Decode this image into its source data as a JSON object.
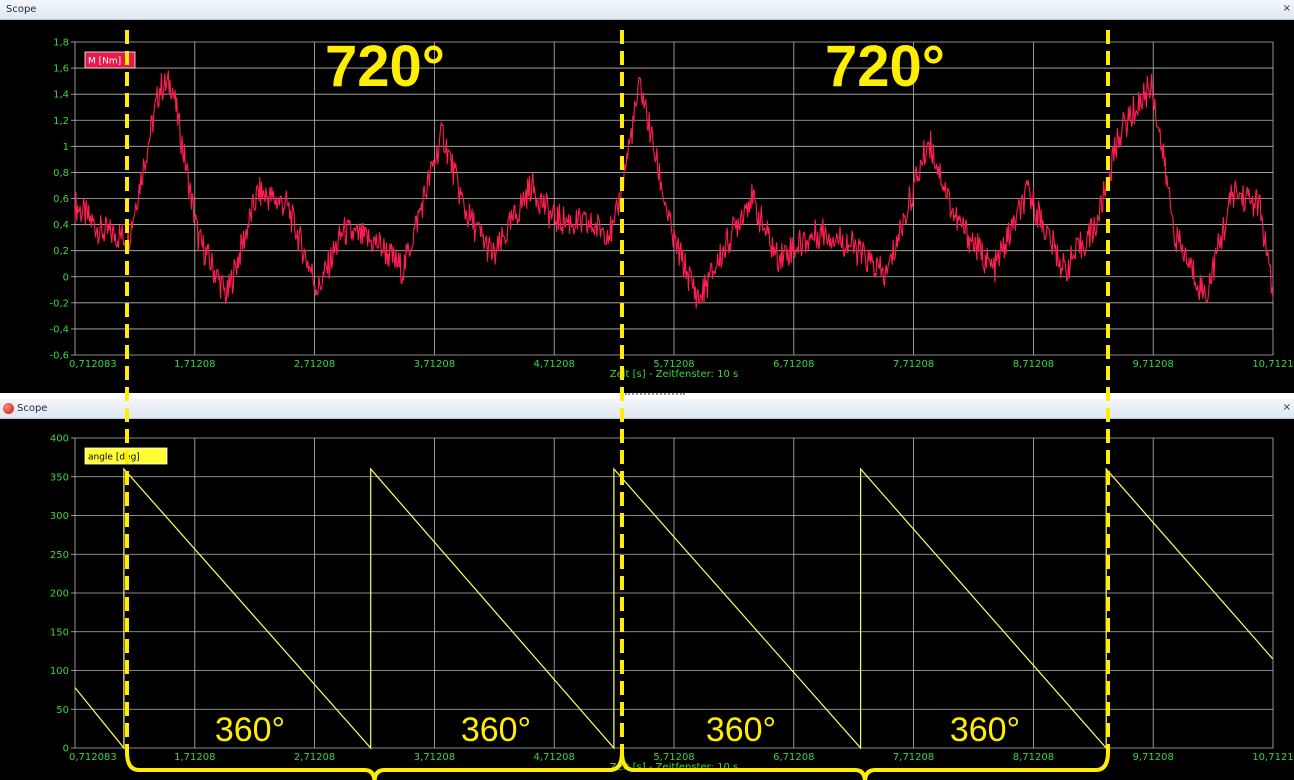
{
  "window1": {
    "title": "Scope",
    "close": "×"
  },
  "window2": {
    "title": "Scope",
    "close": "×"
  },
  "colors": {
    "plot_bg": "#000000",
    "grid": "#b8b8b8",
    "tick_text": "#3cd43c",
    "torque": "#ff1e50",
    "angle": "#ffff66",
    "annotation": "#ffee00",
    "titlebar_bg": "#dfe7f1"
  },
  "chart_data": [
    {
      "type": "line",
      "title": "",
      "xlabel": "Zeit [s] - Zeitfenster: 10 s",
      "ylabel": "",
      "xlim": [
        0.712083,
        10.71208
      ],
      "ylim": [
        -0.6,
        1.8
      ],
      "x_tick_labels": [
        "0,712083",
        "1,71208",
        "2,71208",
        "3,71208",
        "4,71208",
        "5,71208",
        "6,71208",
        "7,71208",
        "8,71208",
        "9,71208",
        "10,7121"
      ],
      "y_ticks": [
        -0.6,
        -0.4,
        -0.2,
        0,
        0.2,
        0.4,
        0.6,
        0.8,
        1,
        1.2,
        1.4,
        1.6,
        1.8
      ],
      "y_tick_labels": [
        "-0,6",
        "-0,4",
        "-0,2",
        "0",
        "0,2",
        "0,4",
        "0,6",
        "0,8",
        "1",
        "1,2",
        "1,4",
        "1,6",
        "1,8"
      ],
      "series": [
        {
          "name": "M [Nm]",
          "color": "#ff1e50",
          "noise_band": 0.12,
          "x": [
            0.712,
            0.93,
            1.16,
            1.42,
            1.52,
            1.74,
            1.98,
            2.24,
            2.48,
            2.74,
            2.95,
            3.25,
            3.45,
            3.78,
            3.97,
            4.21,
            4.52,
            4.7,
            5.21,
            5.43,
            5.7,
            5.92,
            6.35,
            6.57,
            6.95,
            7.18,
            7.48,
            7.84,
            8.06,
            8.38,
            8.67,
            8.97,
            9.24,
            9.43,
            9.7,
            9.9,
            10.15,
            10.38,
            10.6,
            10.71
          ],
          "y": [
            0.55,
            0.35,
            0.3,
            1.45,
            1.48,
            0.3,
            -0.15,
            0.65,
            0.55,
            -0.1,
            0.35,
            0.25,
            0.05,
            1.1,
            0.5,
            0.15,
            0.7,
            0.45,
            0.35,
            1.48,
            0.3,
            -0.18,
            0.62,
            0.15,
            0.35,
            0.25,
            0.0,
            1.05,
            0.45,
            0.05,
            0.65,
            0.05,
            0.4,
            1.1,
            1.48,
            0.3,
            -0.15,
            0.65,
            0.55,
            -0.15
          ]
        }
      ]
    },
    {
      "type": "line",
      "title": "",
      "xlabel": "Zeit [s] - Zeitfenster: 10 s",
      "ylabel": "",
      "xlim": [
        0.712083,
        10.71208
      ],
      "ylim": [
        0,
        400
      ],
      "x_tick_labels": [
        "0,712083",
        "1,71208",
        "2,71208",
        "3,71208",
        "4,71208",
        "5,71208",
        "6,71208",
        "7,71208",
        "8,71208",
        "9,71208",
        "10,7121"
      ],
      "y_ticks": [
        0,
        50,
        100,
        150,
        200,
        250,
        300,
        350,
        400
      ],
      "y_tick_labels": [
        "0",
        "50",
        "100",
        "150",
        "200",
        "250",
        "300",
        "350",
        "400"
      ],
      "series": [
        {
          "name": "angle [deg]",
          "color": "#ffff66",
          "x": [
            0.712,
            1.12,
            1.12,
            3.18,
            3.18,
            5.21,
            5.21,
            7.27,
            7.27,
            9.32,
            9.32,
            10.71
          ],
          "y": [
            78,
            0,
            360,
            0,
            360,
            0,
            360,
            0,
            360,
            0,
            360,
            115
          ]
        }
      ]
    }
  ],
  "annotations": {
    "label_720_a": "720°",
    "label_720_b": "720°",
    "label_360_a": "360°",
    "label_360_b": "360°",
    "label_360_c": "360°",
    "label_360_d": "360°"
  }
}
